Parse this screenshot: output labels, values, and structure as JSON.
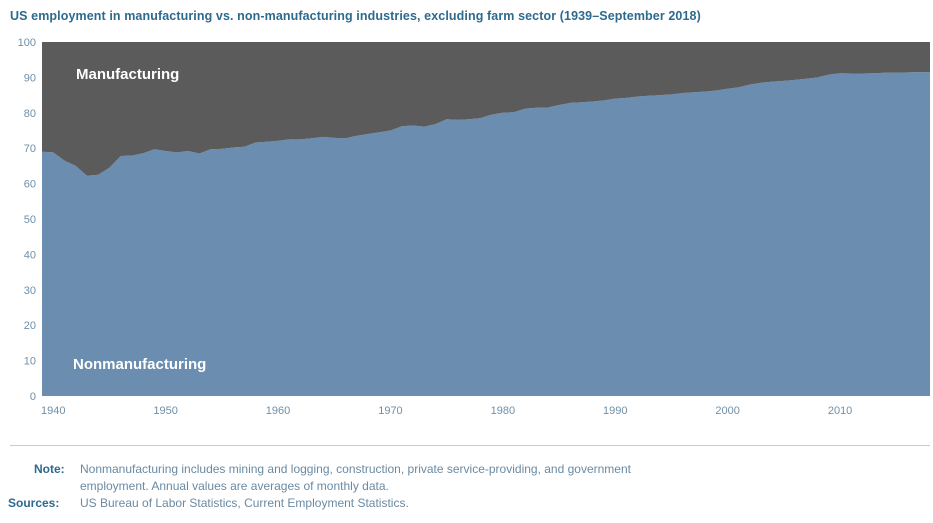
{
  "chart_data": {
    "type": "area",
    "title": "US employment in manufacturing vs. non-manufacturing industries, excluding farm sector (1939–September 2018)",
    "xlabel": "",
    "ylabel": "",
    "ylim": [
      0,
      100
    ],
    "xlim": [
      1939,
      2018
    ],
    "x_ticks": [
      1940,
      1950,
      1960,
      1970,
      1980,
      1990,
      2000,
      2010
    ],
    "y_ticks": [
      0,
      10,
      20,
      30,
      40,
      50,
      60,
      70,
      80,
      90,
      100
    ],
    "grid": false,
    "stacked": true,
    "x": [
      1939,
      1940,
      1941,
      1942,
      1943,
      1944,
      1945,
      1946,
      1947,
      1948,
      1949,
      1950,
      1951,
      1952,
      1953,
      1954,
      1955,
      1956,
      1957,
      1958,
      1959,
      1960,
      1961,
      1962,
      1963,
      1964,
      1965,
      1966,
      1967,
      1968,
      1969,
      1970,
      1971,
      1972,
      1973,
      1974,
      1975,
      1976,
      1977,
      1978,
      1979,
      1980,
      1981,
      1982,
      1983,
      1984,
      1985,
      1986,
      1987,
      1988,
      1989,
      1990,
      1991,
      1992,
      1993,
      1994,
      1995,
      1996,
      1997,
      1998,
      1999,
      2000,
      2001,
      2002,
      2003,
      2004,
      2005,
      2006,
      2007,
      2008,
      2009,
      2010,
      2011,
      2012,
      2013,
      2014,
      2015,
      2016,
      2017,
      2018
    ],
    "series": [
      {
        "name": "Nonmanufacturing",
        "color": "#6a8db0",
        "values": [
          69,
          68.8,
          66.5,
          65,
          62.2,
          62.5,
          64.5,
          67.8,
          67.9,
          68.6,
          69.7,
          69.2,
          68.8,
          69.2,
          68.5,
          69.7,
          69.8,
          70.2,
          70.4,
          71.6,
          71.8,
          72.1,
          72.5,
          72.5,
          72.8,
          73.2,
          72.9,
          72.8,
          73.5,
          74,
          74.5,
          75,
          76.2,
          76.4,
          76.1,
          76.8,
          78.2,
          78,
          78.2,
          78.5,
          79.5,
          80,
          80.2,
          81.2,
          81.4,
          81.5,
          82.2,
          82.8,
          83,
          83.2,
          83.5,
          84,
          84.2,
          84.6,
          84.8,
          85,
          85.2,
          85.6,
          85.8,
          86,
          86.3,
          86.8,
          87.2,
          88,
          88.5,
          88.8,
          89,
          89.3,
          89.6,
          90,
          90.8,
          91.2,
          91.1,
          91.1,
          91.2,
          91.3,
          91.3,
          91.4,
          91.5,
          91.5
        ]
      },
      {
        "name": "Manufacturing",
        "color": "#5b5b5b",
        "values": [
          31,
          31.2,
          33.5,
          35,
          37.8,
          37.5,
          35.5,
          32.2,
          32.1,
          31.4,
          30.3,
          30.8,
          31.2,
          30.8,
          31.5,
          30.3,
          30.2,
          29.8,
          29.6,
          28.4,
          28.2,
          27.9,
          27.5,
          27.5,
          27.2,
          26.8,
          27.1,
          27.2,
          26.5,
          26,
          25.5,
          25,
          23.8,
          23.6,
          23.9,
          23.2,
          21.8,
          22,
          21.8,
          21.5,
          20.5,
          20,
          19.8,
          18.8,
          18.6,
          18.5,
          17.8,
          17.2,
          17,
          16.8,
          16.5,
          16,
          15.8,
          15.4,
          15.2,
          15,
          14.8,
          14.4,
          14.2,
          14,
          13.7,
          13.2,
          12.8,
          12,
          11.5,
          11.2,
          11,
          10.7,
          10.4,
          10,
          9.2,
          8.8,
          8.9,
          8.9,
          8.8,
          8.7,
          8.7,
          8.6,
          8.5,
          8.5
        ]
      }
    ]
  },
  "notes": {
    "note_label": "Note:",
    "note_line1": "Nonmanufacturing includes mining and logging, construction, private service-providing, and government",
    "note_line2": "employment. Annual values are averages of monthly data.",
    "sources_label": "Sources:",
    "sources_text": "US Bureau of Labor Statistics, Current Employment Statistics."
  }
}
